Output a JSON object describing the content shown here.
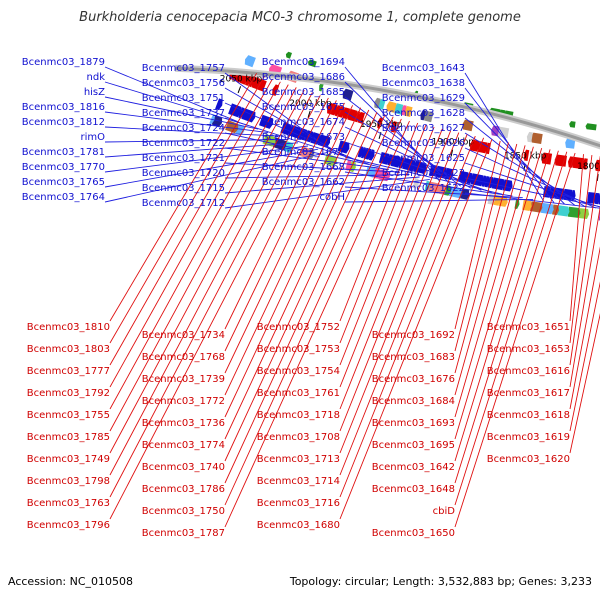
{
  "title": "Burkholderia cenocepacia MC0-3 chromosome 1, complete genome",
  "footer": {
    "accession": "Accession: NC_010508",
    "topology": "Topology: circular; Length: 3,532,883 bp; Genes: 3,233"
  },
  "scale_ticks": [
    "2050 kbp",
    "2000 kbp",
    "1950 kbp",
    "1900 kbp",
    "1850 kbp",
    "1800 kbp"
  ],
  "colors": {
    "forward": "#1010d0",
    "reverse": "#e00000",
    "backbone": "#999999"
  },
  "forward_labels": [
    "Bcenmc03_1879",
    "ndk",
    "hisZ",
    "Bcenmc03_1816",
    "Bcenmc03_1812",
    "rimO",
    "Bcenmc03_1781",
    "Bcenmc03_1770",
    "Bcenmc03_1765",
    "Bcenmc03_1764",
    "Bcenmc03_1757",
    "Bcenmc03_1756",
    "Bcenmc03_1751",
    "Bcenmc03_1737",
    "Bcenmc03_1724",
    "Bcenmc03_1722",
    "Bcenmc03_1721",
    "Bcenmc03_1720",
    "Bcenmc03_1715",
    "Bcenmc03_1712",
    "Bcenmc03_1694",
    "Bcenmc03_1686",
    "Bcenmc03_1685",
    "Bcenmc03_1675",
    "Bcenmc03_1674",
    "Bcenmc03_1673",
    "Bcenmc03_1672",
    "Bcenmc03_1668",
    "Bcenmc03_1662",
    "cobH",
    "Bcenmc03_1643",
    "Bcenmc03_1638",
    "Bcenmc03_1629",
    "Bcenmc03_1628",
    "Bcenmc03_1627",
    "Bcenmc03_1626",
    "Bcenmc03_1625",
    "Bcenmc03_1623",
    "Bcenmc03_1622"
  ],
  "reverse_labels": [
    "Bcenmc03_1810",
    "Bcenmc03_1803",
    "Bcenmc03_1777",
    "Bcenmc03_1792",
    "Bcenmc03_1755",
    "Bcenmc03_1785",
    "Bcenmc03_1749",
    "Bcenmc03_1798",
    "Bcenmc03_1763",
    "Bcenmc03_1796",
    "Bcenmc03_1734",
    "Bcenmc03_1768",
    "Bcenmc03_1739",
    "Bcenmc03_1772",
    "Bcenmc03_1736",
    "Bcenmc03_1774",
    "Bcenmc03_1740",
    "Bcenmc03_1786",
    "Bcenmc03_1750",
    "Bcenmc03_1787",
    "Bcenmc03_1752",
    "Bcenmc03_1753",
    "Bcenmc03_1754",
    "Bcenmc03_1761",
    "Bcenmc03_1718",
    "Bcenmc03_1708",
    "Bcenmc03_1713",
    "Bcenmc03_1714",
    "Bcenmc03_1716",
    "Bcenmc03_1680",
    "Bcenmc03_1692",
    "Bcenmc03_1683",
    "Bcenmc03_1676",
    "Bcenmc03_1684",
    "Bcenmc03_1693",
    "Bcenmc03_1695",
    "Bcenmc03_1642",
    "Bcenmc03_1648",
    "cbiD",
    "Bcenmc03_1650",
    "Bcenmc03_1651",
    "Bcenmc03_1653",
    "Bcenmc03_1616",
    "Bcenmc03_1617",
    "Bcenmc03_1618",
    "Bcenmc03_1619",
    "Bcenmc03_1620"
  ]
}
